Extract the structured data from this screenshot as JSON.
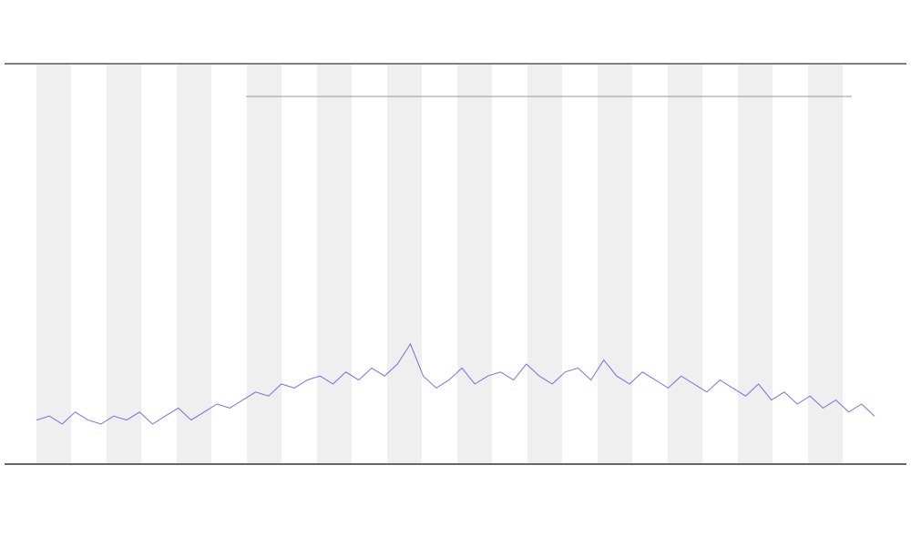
{
  "chart_data": {
    "type": "line",
    "ylim": [
      0,
      100
    ],
    "series": [
      {
        "color": "#3b3bdb",
        "values": [
          11,
          12,
          10,
          13,
          11,
          10,
          12,
          11,
          13,
          10,
          12,
          14,
          11,
          13,
          15,
          14,
          16,
          18,
          17,
          20,
          19,
          21,
          22,
          20,
          23,
          21,
          24,
          22,
          25,
          30,
          22,
          19,
          21,
          24,
          20,
          22,
          23,
          21,
          25,
          22,
          20,
          23,
          24,
          21,
          26,
          22,
          20,
          23,
          21,
          19,
          22,
          20,
          18,
          21,
          19,
          17,
          20,
          16,
          18,
          15,
          17,
          14,
          16,
          13,
          15,
          12
        ]
      }
    ]
  }
}
